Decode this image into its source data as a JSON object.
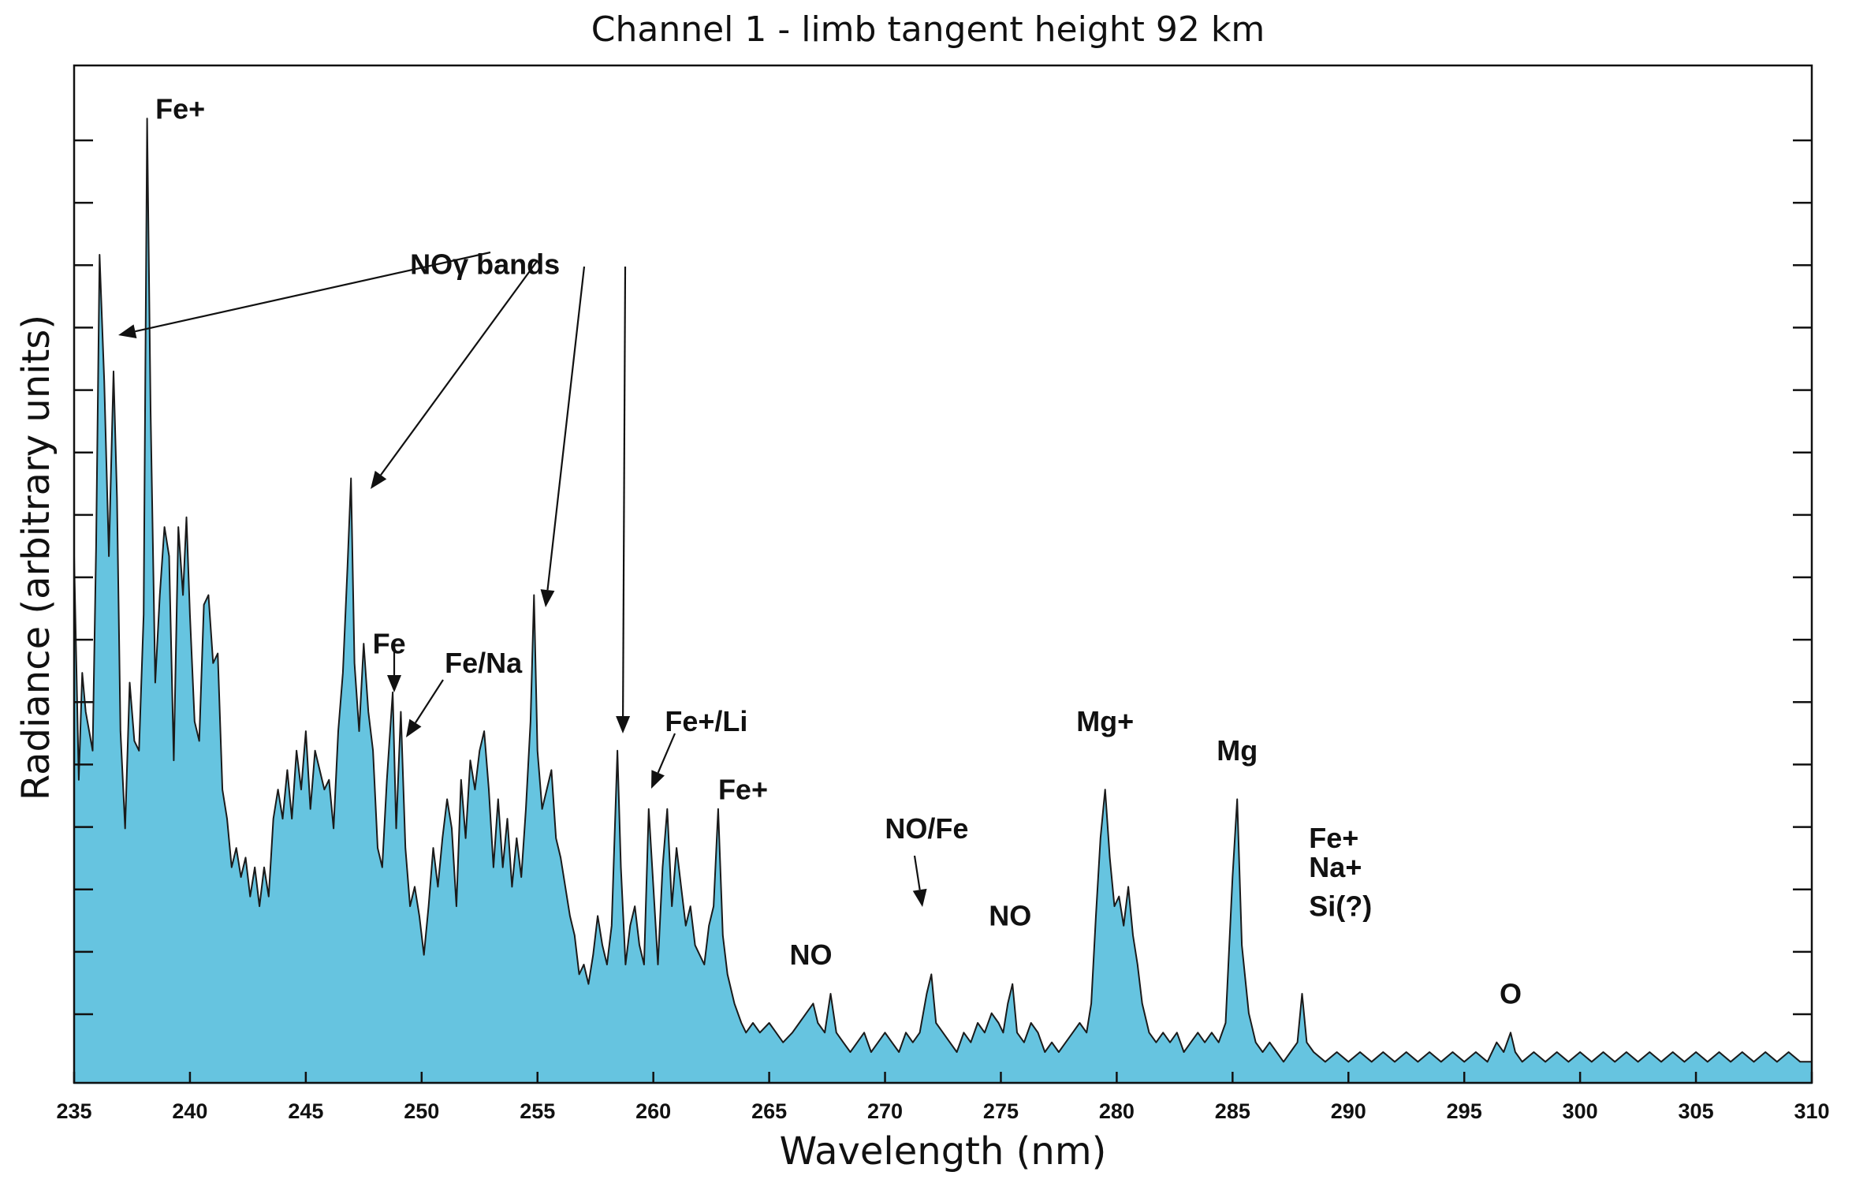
{
  "chart_data": {
    "type": "area",
    "title": "Channel 1 - limb tangent height 92 km",
    "xlabel": "Wavelength (nm)",
    "ylabel": "Radiance (arbitrary units)",
    "xlim": [
      235,
      310
    ],
    "ylim": [
      0,
      100
    ],
    "x_ticks": [
      235,
      240,
      245,
      250,
      255,
      260,
      265,
      270,
      275,
      280,
      285,
      290,
      295,
      300,
      305,
      310
    ],
    "y_tick_count": 15,
    "fill_color": "#66c4e0",
    "line_color": "#1a1a1a",
    "series": [
      {
        "name": "radiance",
        "points": [
          [
            235.0,
            54
          ],
          [
            235.2,
            31
          ],
          [
            235.35,
            42
          ],
          [
            235.5,
            38
          ],
          [
            235.65,
            36
          ],
          [
            235.8,
            34
          ],
          [
            235.95,
            55
          ],
          [
            236.1,
            85
          ],
          [
            236.3,
            72
          ],
          [
            236.5,
            54
          ],
          [
            236.7,
            73
          ],
          [
            236.85,
            60
          ],
          [
            237.0,
            36
          ],
          [
            237.2,
            26
          ],
          [
            237.4,
            41
          ],
          [
            237.6,
            35
          ],
          [
            237.8,
            34
          ],
          [
            238.0,
            48
          ],
          [
            238.15,
            99
          ],
          [
            238.3,
            69
          ],
          [
            238.5,
            41
          ],
          [
            238.7,
            50
          ],
          [
            238.9,
            57
          ],
          [
            239.1,
            54
          ],
          [
            239.3,
            33
          ],
          [
            239.5,
            57
          ],
          [
            239.7,
            50
          ],
          [
            239.85,
            58
          ],
          [
            240.0,
            48
          ],
          [
            240.2,
            37
          ],
          [
            240.4,
            35
          ],
          [
            240.6,
            49
          ],
          [
            240.8,
            50
          ],
          [
            241.0,
            43
          ],
          [
            241.2,
            44
          ],
          [
            241.4,
            30
          ],
          [
            241.6,
            27
          ],
          [
            241.8,
            22
          ],
          [
            242.0,
            24
          ],
          [
            242.2,
            21
          ],
          [
            242.4,
            23
          ],
          [
            242.6,
            19
          ],
          [
            242.8,
            22
          ],
          [
            243.0,
            18
          ],
          [
            243.2,
            22
          ],
          [
            243.4,
            19
          ],
          [
            243.6,
            27
          ],
          [
            243.8,
            30
          ],
          [
            244.0,
            27
          ],
          [
            244.2,
            32
          ],
          [
            244.4,
            27
          ],
          [
            244.6,
            34
          ],
          [
            244.8,
            30
          ],
          [
            245.0,
            36
          ],
          [
            245.2,
            28
          ],
          [
            245.4,
            34
          ],
          [
            245.6,
            32
          ],
          [
            245.8,
            30
          ],
          [
            246.0,
            31
          ],
          [
            246.2,
            26
          ],
          [
            246.4,
            36
          ],
          [
            246.6,
            42
          ],
          [
            246.8,
            53
          ],
          [
            246.95,
            62
          ],
          [
            247.1,
            43
          ],
          [
            247.3,
            36
          ],
          [
            247.5,
            45
          ],
          [
            247.7,
            38
          ],
          [
            247.9,
            34
          ],
          [
            248.1,
            24
          ],
          [
            248.3,
            22
          ],
          [
            248.5,
            31
          ],
          [
            248.75,
            40
          ],
          [
            248.9,
            26
          ],
          [
            249.1,
            38
          ],
          [
            249.3,
            24
          ],
          [
            249.5,
            18
          ],
          [
            249.7,
            20
          ],
          [
            249.9,
            17
          ],
          [
            250.1,
            13
          ],
          [
            250.3,
            18
          ],
          [
            250.5,
            24
          ],
          [
            250.7,
            20
          ],
          [
            250.9,
            25
          ],
          [
            251.1,
            29
          ],
          [
            251.3,
            26
          ],
          [
            251.5,
            18
          ],
          [
            251.7,
            31
          ],
          [
            251.9,
            25
          ],
          [
            252.1,
            33
          ],
          [
            252.3,
            30
          ],
          [
            252.5,
            34
          ],
          [
            252.7,
            36
          ],
          [
            252.9,
            30
          ],
          [
            253.1,
            22
          ],
          [
            253.3,
            29
          ],
          [
            253.5,
            22
          ],
          [
            253.7,
            27
          ],
          [
            253.9,
            20
          ],
          [
            254.1,
            25
          ],
          [
            254.3,
            21
          ],
          [
            254.5,
            28
          ],
          [
            254.7,
            37
          ],
          [
            254.85,
            50
          ],
          [
            255.0,
            34
          ],
          [
            255.2,
            28
          ],
          [
            255.4,
            30
          ],
          [
            255.6,
            32
          ],
          [
            255.8,
            25
          ],
          [
            256.0,
            23
          ],
          [
            256.2,
            20
          ],
          [
            256.4,
            17
          ],
          [
            256.6,
            15
          ],
          [
            256.8,
            11
          ],
          [
            257.0,
            12
          ],
          [
            257.2,
            10
          ],
          [
            257.4,
            13
          ],
          [
            257.6,
            17
          ],
          [
            257.8,
            14
          ],
          [
            258.0,
            12
          ],
          [
            258.2,
            16
          ],
          [
            258.45,
            34
          ],
          [
            258.6,
            22
          ],
          [
            258.8,
            12
          ],
          [
            259.0,
            16
          ],
          [
            259.2,
            18
          ],
          [
            259.4,
            14
          ],
          [
            259.6,
            12
          ],
          [
            259.8,
            28
          ],
          [
            260.0,
            20
          ],
          [
            260.2,
            12
          ],
          [
            260.4,
            22
          ],
          [
            260.6,
            28
          ],
          [
            260.8,
            18
          ],
          [
            261.0,
            24
          ],
          [
            261.2,
            20
          ],
          [
            261.4,
            16
          ],
          [
            261.6,
            18
          ],
          [
            261.8,
            14
          ],
          [
            262.0,
            13
          ],
          [
            262.2,
            12
          ],
          [
            262.4,
            16
          ],
          [
            262.6,
            18
          ],
          [
            262.8,
            28
          ],
          [
            263.0,
            15
          ],
          [
            263.2,
            11
          ],
          [
            263.5,
            8
          ],
          [
            263.8,
            6
          ],
          [
            264.0,
            5
          ],
          [
            264.3,
            6
          ],
          [
            264.6,
            5
          ],
          [
            265.0,
            6
          ],
          [
            265.3,
            5
          ],
          [
            265.6,
            4
          ],
          [
            266.0,
            5
          ],
          [
            266.3,
            6
          ],
          [
            266.6,
            7
          ],
          [
            266.9,
            8
          ],
          [
            267.1,
            6
          ],
          [
            267.4,
            5
          ],
          [
            267.65,
            9
          ],
          [
            267.9,
            5
          ],
          [
            268.2,
            4
          ],
          [
            268.5,
            3
          ],
          [
            268.8,
            4
          ],
          [
            269.1,
            5
          ],
          [
            269.4,
            3
          ],
          [
            269.7,
            4
          ],
          [
            270.0,
            5
          ],
          [
            270.3,
            4
          ],
          [
            270.6,
            3
          ],
          [
            270.9,
            5
          ],
          [
            271.2,
            4
          ],
          [
            271.5,
            5
          ],
          [
            271.8,
            9
          ],
          [
            272.0,
            11
          ],
          [
            272.2,
            6
          ],
          [
            272.5,
            5
          ],
          [
            272.8,
            4
          ],
          [
            273.1,
            3
          ],
          [
            273.4,
            5
          ],
          [
            273.7,
            4
          ],
          [
            274.0,
            6
          ],
          [
            274.3,
            5
          ],
          [
            274.6,
            7
          ],
          [
            274.9,
            6
          ],
          [
            275.1,
            5
          ],
          [
            275.3,
            8
          ],
          [
            275.5,
            10
          ],
          [
            275.7,
            5
          ],
          [
            276.0,
            4
          ],
          [
            276.3,
            6
          ],
          [
            276.6,
            5
          ],
          [
            276.9,
            3
          ],
          [
            277.2,
            4
          ],
          [
            277.5,
            3
          ],
          [
            277.8,
            4
          ],
          [
            278.1,
            5
          ],
          [
            278.4,
            6
          ],
          [
            278.7,
            5
          ],
          [
            278.9,
            8
          ],
          [
            279.1,
            17
          ],
          [
            279.3,
            25
          ],
          [
            279.5,
            30
          ],
          [
            279.7,
            23
          ],
          [
            279.9,
            18
          ],
          [
            280.1,
            19
          ],
          [
            280.3,
            16
          ],
          [
            280.5,
            20
          ],
          [
            280.7,
            15
          ],
          [
            280.9,
            12
          ],
          [
            281.1,
            8
          ],
          [
            281.4,
            5
          ],
          [
            281.7,
            4
          ],
          [
            282.0,
            5
          ],
          [
            282.3,
            4
          ],
          [
            282.6,
            5
          ],
          [
            282.9,
            3
          ],
          [
            283.2,
            4
          ],
          [
            283.5,
            5
          ],
          [
            283.8,
            4
          ],
          [
            284.1,
            5
          ],
          [
            284.4,
            4
          ],
          [
            284.7,
            6
          ],
          [
            285.0,
            21
          ],
          [
            285.2,
            29
          ],
          [
            285.4,
            14
          ],
          [
            285.7,
            7
          ],
          [
            286.0,
            4
          ],
          [
            286.3,
            3
          ],
          [
            286.6,
            4
          ],
          [
            286.9,
            3
          ],
          [
            287.2,
            2
          ],
          [
            287.5,
            3
          ],
          [
            287.8,
            4
          ],
          [
            288.0,
            9
          ],
          [
            288.2,
            4
          ],
          [
            288.5,
            3
          ],
          [
            289.0,
            2
          ],
          [
            289.5,
            3
          ],
          [
            290.0,
            2
          ],
          [
            290.5,
            3
          ],
          [
            291.0,
            2
          ],
          [
            291.5,
            3
          ],
          [
            292.0,
            2
          ],
          [
            292.5,
            3
          ],
          [
            293.0,
            2
          ],
          [
            293.5,
            3
          ],
          [
            294.0,
            2
          ],
          [
            294.5,
            3
          ],
          [
            295.0,
            2
          ],
          [
            295.5,
            3
          ],
          [
            296.0,
            2
          ],
          [
            296.4,
            4
          ],
          [
            296.7,
            3
          ],
          [
            297.0,
            5
          ],
          [
            297.2,
            3
          ],
          [
            297.5,
            2
          ],
          [
            298.0,
            3
          ],
          [
            298.5,
            2
          ],
          [
            299.0,
            3
          ],
          [
            299.5,
            2
          ],
          [
            300.0,
            3
          ],
          [
            300.5,
            2
          ],
          [
            301.0,
            3
          ],
          [
            301.5,
            2
          ],
          [
            302.0,
            3
          ],
          [
            302.5,
            2
          ],
          [
            303.0,
            3
          ],
          [
            303.5,
            2
          ],
          [
            304.0,
            3
          ],
          [
            304.5,
            2
          ],
          [
            305.0,
            3
          ],
          [
            305.5,
            2
          ],
          [
            306.0,
            3
          ],
          [
            306.5,
            2
          ],
          [
            307.0,
            3
          ],
          [
            307.5,
            2
          ],
          [
            308.0,
            3
          ],
          [
            308.5,
            2
          ],
          [
            309.0,
            3
          ],
          [
            309.5,
            2
          ],
          [
            310.0,
            2
          ]
        ]
      }
    ],
    "annotations": [
      {
        "label": "Fe+",
        "x": 238.1,
        "y": 99
      },
      {
        "label": "NOγ bands",
        "x": 249.5,
        "y": 83
      },
      {
        "label": "Fe",
        "x": 248.6,
        "y": 44
      },
      {
        "label": "Fe/Na",
        "x": 251.0,
        "y": 42
      },
      {
        "label": "Fe+/Li",
        "x": 260.5,
        "y": 36
      },
      {
        "label": "Fe+",
        "x": 262.8,
        "y": 29
      },
      {
        "label": "NO",
        "x": 266.8,
        "y": 12
      },
      {
        "label": "NO/Fe",
        "x": 271.8,
        "y": 25
      },
      {
        "label": "NO",
        "x": 275.4,
        "y": 16
      },
      {
        "label": "Mg+",
        "x": 279.5,
        "y": 36
      },
      {
        "label": "Mg",
        "x": 285.2,
        "y": 33
      },
      {
        "label": "Fe+",
        "x": 288.3,
        "y": 24
      },
      {
        "label": "Na+",
        "x": 288.3,
        "y": 21
      },
      {
        "label": "Si(?)",
        "x": 288.3,
        "y": 17
      },
      {
        "label": "O",
        "x": 297.0,
        "y": 8
      }
    ]
  }
}
